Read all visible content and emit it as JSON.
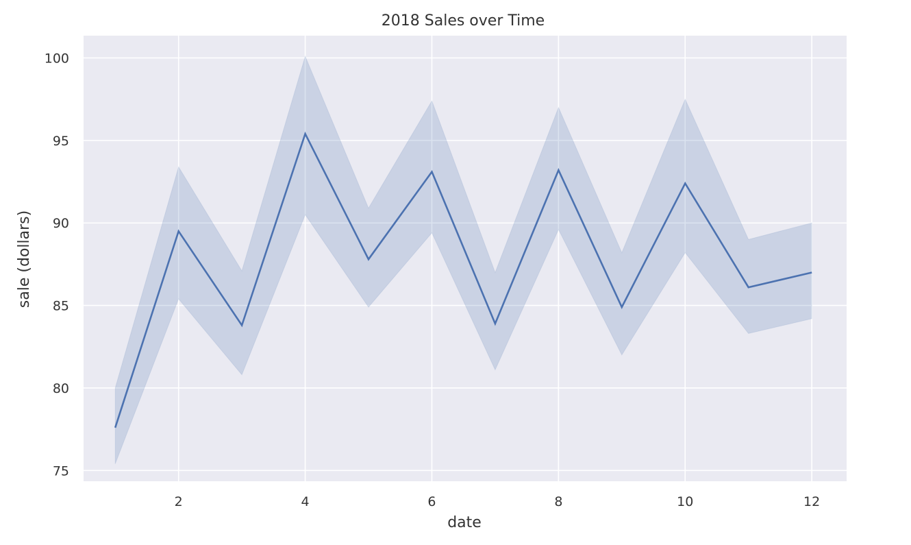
{
  "chart_data": {
    "type": "line",
    "title": "2018 Sales over Time",
    "xlabel": "date",
    "ylabel": "sale (dollars)",
    "xlim": [
      0.5,
      12.55
    ],
    "ylim": [
      74.35,
      101.35
    ],
    "xticks": [
      2,
      4,
      6,
      8,
      10,
      12
    ],
    "yticks": [
      75,
      80,
      85,
      90,
      95,
      100
    ],
    "grid": true,
    "background": "#eaeaf2",
    "colors": {
      "line": "#4c72b0",
      "band": "#4c72b0",
      "grid": "#ffffff"
    },
    "series": [
      {
        "x": [
          1,
          2,
          3,
          4,
          5,
          6,
          7,
          8,
          9,
          10,
          11,
          12
        ],
        "y": [
          77.6,
          89.5,
          83.8,
          95.4,
          87.8,
          93.1,
          83.9,
          93.2,
          84.9,
          92.4,
          86.1,
          87.0
        ],
        "ci_lower": [
          75.4,
          85.4,
          80.8,
          90.5,
          84.9,
          89.4,
          81.1,
          89.6,
          82.0,
          88.2,
          83.3,
          84.2
        ],
        "ci_upper": [
          80.0,
          93.4,
          87.1,
          100.1,
          90.9,
          97.4,
          87.0,
          97.0,
          88.2,
          97.5,
          89.0,
          90.0
        ]
      }
    ]
  }
}
